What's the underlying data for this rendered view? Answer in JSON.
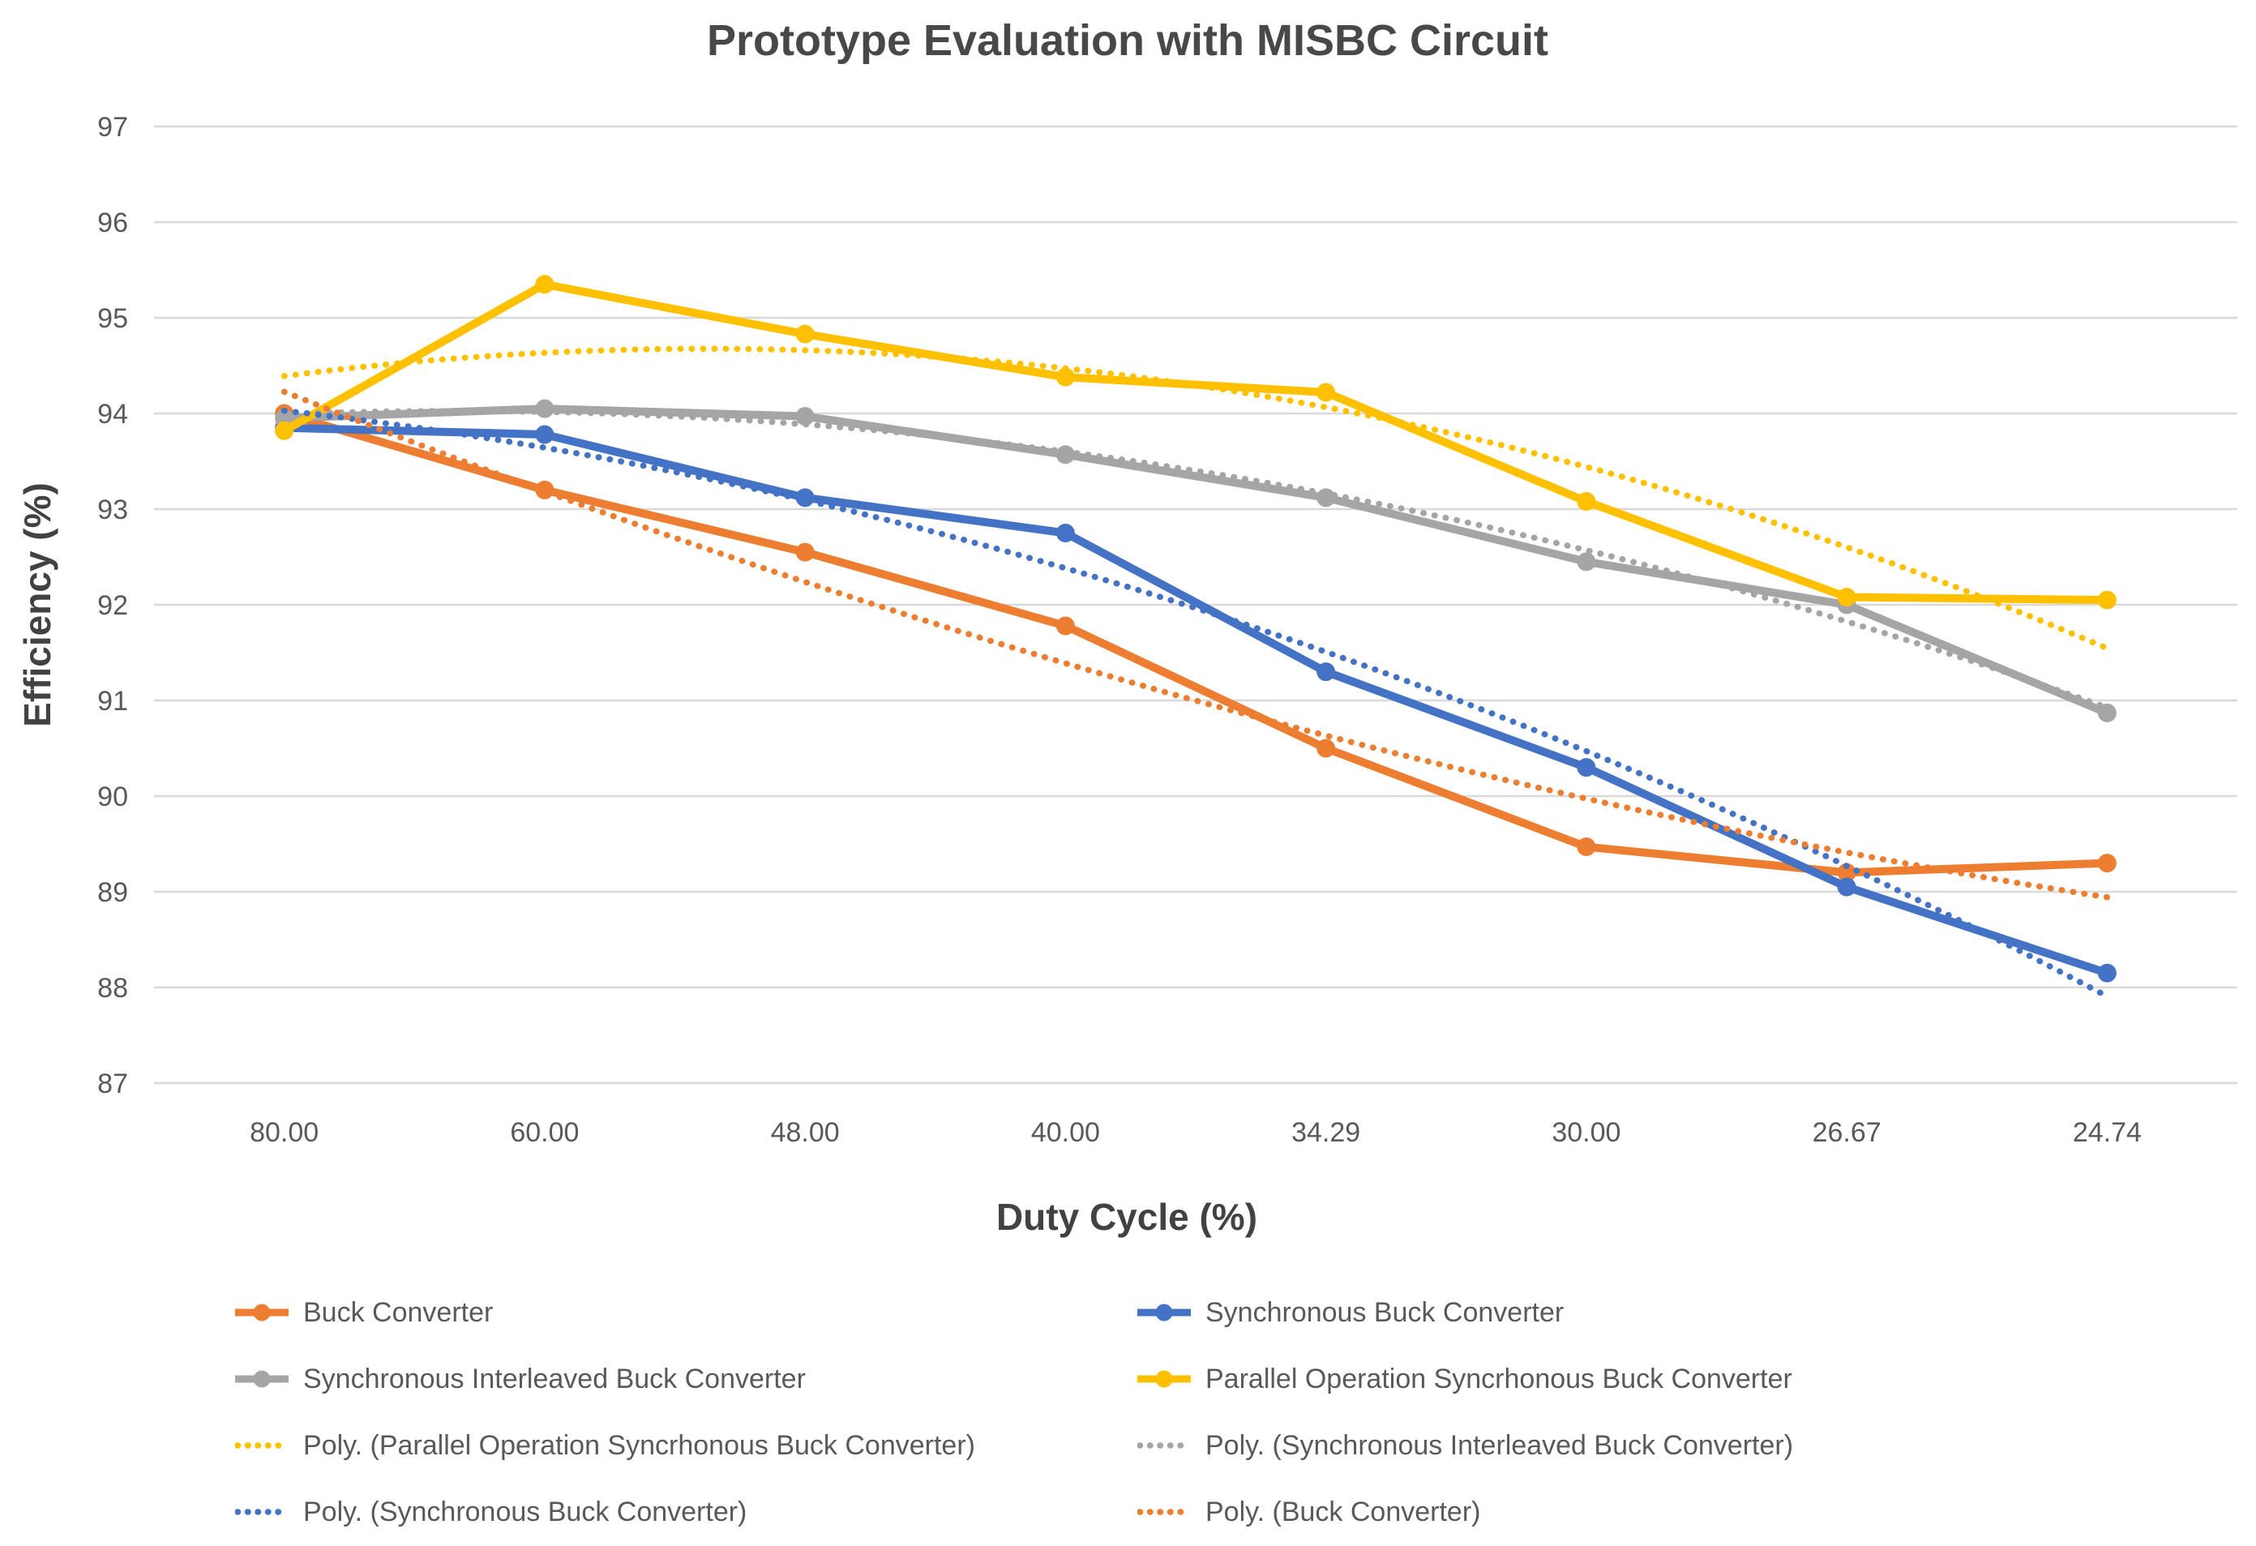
{
  "page": {
    "background": "#ffffff"
  },
  "chart_data": {
    "type": "line",
    "title": "Prototype Evaluation with MISBC Circuit",
    "xlabel": "Duty Cycle (%)",
    "ylabel": "Efficiency (%)",
    "categories": [
      "80.00",
      "60.00",
      "48.00",
      "40.00",
      "34.29",
      "30.00",
      "26.67",
      "24.74"
    ],
    "ylim": [
      87,
      97
    ],
    "yticks": [
      "97",
      "96",
      "95",
      "94",
      "93",
      "92",
      "91",
      "90",
      "89",
      "88",
      "87"
    ],
    "grid": "horizontal-gridlines",
    "grid_color": "#d9d9d9",
    "text_color": "#595959",
    "title_color": "#484848",
    "legend_position": "bottom",
    "series": [
      {
        "name": "Buck Converter",
        "color": "#ED7D31",
        "style": "solid-marker",
        "values": [
          94.0,
          93.2,
          92.55,
          91.78,
          90.5,
          89.47,
          89.2,
          89.3
        ]
      },
      {
        "name": "Synchronous Buck Converter",
        "color": "#4472C4",
        "style": "solid-marker",
        "values": [
          93.85,
          93.78,
          93.12,
          92.75,
          91.3,
          90.3,
          89.05,
          88.15
        ]
      },
      {
        "name": "Synchronous Interleaved Buck Converter",
        "color": "#A5A5A5",
        "style": "solid-marker",
        "values": [
          93.95,
          94.05,
          93.97,
          93.57,
          93.12,
          92.45,
          92.0,
          90.87
        ]
      },
      {
        "name": "Parallel Operation Syncrhonous Buck Converter",
        "color": "#FFC000",
        "style": "solid-marker",
        "values": [
          93.82,
          95.35,
          94.83,
          94.38,
          94.22,
          93.08,
          92.08,
          92.05
        ]
      }
    ],
    "trendlines": [
      {
        "name": "Poly. (Parallel Operation Syncrhonous Buck Converter)",
        "series": 3,
        "order": 2,
        "color": "#FFC000"
      },
      {
        "name": "Poly. (Synchronous Interleaved Buck Converter)",
        "series": 2,
        "order": 2,
        "color": "#A5A5A5"
      },
      {
        "name": "Poly. (Synchronous Buck Converter)",
        "series": 1,
        "order": 2,
        "color": "#4472C4"
      },
      {
        "name": "Poly. (Buck Converter)",
        "series": 0,
        "order": 2,
        "color": "#ED7D31"
      }
    ],
    "legend": {
      "position": "bottom",
      "columns": 2,
      "items": [
        {
          "label": "Buck Converter",
          "color": "#ED7D31",
          "style": "solid-marker"
        },
        {
          "label": "Synchronous Buck Converter",
          "color": "#4472C4",
          "style": "solid-marker"
        },
        {
          "label": "Synchronous Interleaved Buck Converter",
          "color": "#A5A5A5",
          "style": "solid-marker"
        },
        {
          "label": "Parallel Operation Syncrhonous Buck Converter",
          "color": "#FFC000",
          "style": "solid-marker"
        },
        {
          "label": "Poly. (Parallel Operation Syncrhonous Buck Converter)",
          "color": "#FFC000",
          "style": "dotted"
        },
        {
          "label": "Poly. (Synchronous Interleaved Buck Converter)",
          "color": "#A5A5A5",
          "style": "dotted"
        },
        {
          "label": "Poly. (Synchronous Buck Converter)",
          "color": "#4472C4",
          "style": "dotted"
        },
        {
          "label": "Poly. (Buck Converter)",
          "color": "#ED7D31",
          "style": "dotted"
        }
      ]
    }
  }
}
